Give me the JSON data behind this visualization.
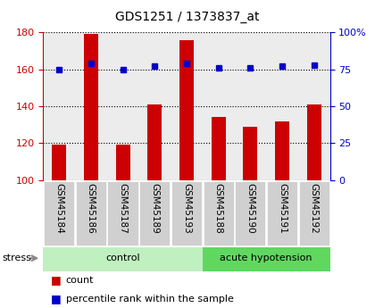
{
  "title": "GDS1251 / 1373837_at",
  "categories": [
    "GSM45184",
    "GSM45186",
    "GSM45187",
    "GSM45189",
    "GSM45193",
    "GSM45188",
    "GSM45190",
    "GSM45191",
    "GSM45192"
  ],
  "count_values": [
    119,
    179,
    119,
    141,
    176,
    134,
    129,
    132,
    141
  ],
  "percentile_values": [
    75,
    79,
    75,
    77,
    79,
    76,
    76,
    77,
    78
  ],
  "groups": [
    {
      "label": "control",
      "start": 0,
      "end": 5,
      "color": "#c0f0c0"
    },
    {
      "label": "acute hypotension",
      "start": 5,
      "end": 9,
      "color": "#60d860"
    }
  ],
  "left_ylim": [
    100,
    180
  ],
  "right_ylim": [
    0,
    100
  ],
  "left_yticks": [
    100,
    120,
    140,
    160,
    180
  ],
  "right_yticks": [
    0,
    25,
    50,
    75,
    100
  ],
  "right_yticklabels": [
    "0",
    "25",
    "50",
    "75",
    "100%"
  ],
  "left_color": "#cc0000",
  "right_color": "#0000cc",
  "bar_color": "#cc0000",
  "dot_color": "#0000cc",
  "col_bg_color": "#d0d0d0",
  "plot_bg_color": "#ffffff",
  "stress_label": "stress",
  "legend_count": "count",
  "legend_percentile": "percentile rank within the sample",
  "title_fontsize": 10,
  "tick_fontsize": 8,
  "label_fontsize": 7.5,
  "group_fontsize": 8,
  "legend_fontsize": 8
}
